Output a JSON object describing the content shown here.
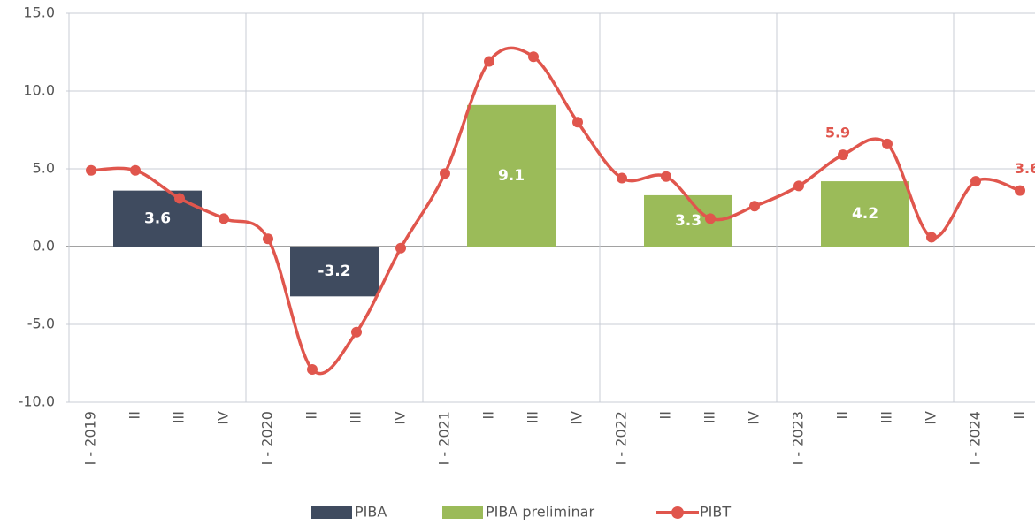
{
  "chart_data": {
    "type": "combo",
    "categories": [
      "I - 2019",
      "II",
      "III",
      "IV",
      "I - 2020",
      "II",
      "III",
      "IV",
      "I - 2021",
      "II",
      "III",
      "IV",
      "I - 2022",
      "II",
      "III",
      "IV",
      "I - 2023",
      "II",
      "III",
      "IV",
      "I - 2024",
      "II"
    ],
    "series": [
      {
        "name": "PIBA",
        "type": "bar",
        "color": "#3f4b5f",
        "values": [
          null,
          3.6,
          null,
          null,
          null,
          -3.2,
          null,
          null,
          null,
          null,
          null,
          null,
          null,
          null,
          null,
          null,
          null,
          null,
          null,
          null,
          null,
          null
        ]
      },
      {
        "name": "PIBA preliminar",
        "type": "bar",
        "color": "#9bbb59",
        "values": [
          null,
          null,
          null,
          null,
          null,
          null,
          null,
          null,
          null,
          9.1,
          null,
          null,
          null,
          3.3,
          null,
          null,
          null,
          4.2,
          null,
          null,
          null,
          null
        ]
      },
      {
        "name": "PIBT",
        "type": "line",
        "color": "#e0564d",
        "values": [
          4.9,
          4.9,
          3.1,
          1.8,
          0.5,
          -7.9,
          -5.5,
          -0.1,
          4.7,
          11.9,
          12.2,
          8.0,
          4.4,
          4.5,
          1.8,
          2.6,
          3.9,
          5.9,
          6.6,
          0.6,
          4.2,
          3.6
        ],
        "value_labels": [
          null,
          null,
          null,
          null,
          null,
          null,
          null,
          null,
          null,
          null,
          null,
          null,
          null,
          null,
          null,
          null,
          null,
          "5.9",
          null,
          null,
          null,
          "3.6"
        ]
      }
    ],
    "ylim": [
      -10,
      15
    ],
    "yticks": [
      {
        "value": -10,
        "label": "-10.0"
      },
      {
        "value": -5,
        "label": "-5.0"
      },
      {
        "value": 0,
        "label": "0.0"
      },
      {
        "value": 5,
        "label": "5.0"
      },
      {
        "value": 10,
        "label": "10.0"
      },
      {
        "value": 15,
        "label": "15.0"
      }
    ],
    "grid": true,
    "legend": "bottom"
  }
}
